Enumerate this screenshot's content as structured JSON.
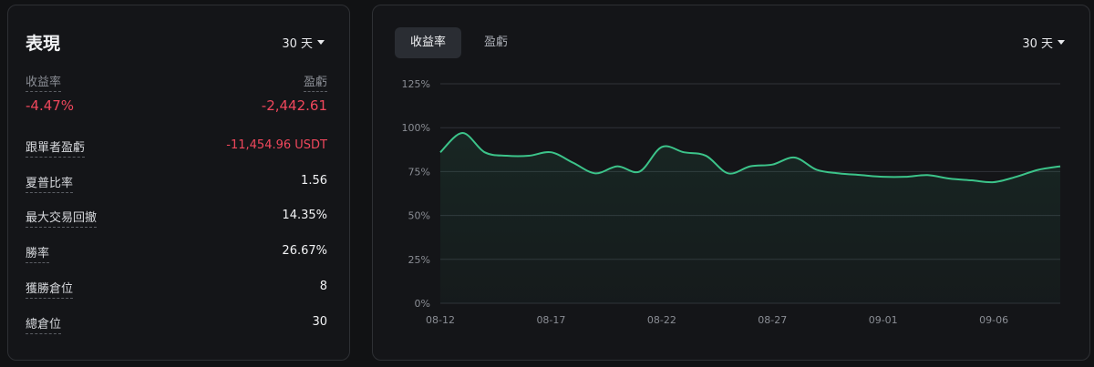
{
  "performance": {
    "title": "表現",
    "period": "30 天",
    "return_label": "收益率",
    "pnl_label": "盈虧",
    "return_value": "-4.47%",
    "pnl_value": "-2,442.61",
    "stats": [
      {
        "label": "跟單者盈虧",
        "value": "-11,454.96 USDT",
        "negative": true
      },
      {
        "label": "夏普比率",
        "value": "1.56",
        "negative": false
      },
      {
        "label": "最大交易回撤",
        "value": "14.35%",
        "negative": false
      },
      {
        "label": "勝率",
        "value": "26.67%",
        "negative": false
      },
      {
        "label": "獲勝倉位",
        "value": "8",
        "negative": false
      },
      {
        "label": "總倉位",
        "value": "30",
        "negative": false
      }
    ]
  },
  "chart_panel": {
    "tabs": [
      "收益率",
      "盈虧"
    ],
    "active_tab": "收益率",
    "period": "30 天"
  },
  "colors": {
    "negative": "#f0475c",
    "line": "#3cc48a",
    "panel_bg": "#141518"
  },
  "chart_data": {
    "type": "area",
    "title": "",
    "xlabel": "",
    "ylabel": "",
    "ylim": [
      0,
      125
    ],
    "yticks": [
      "0%",
      "25%",
      "50%",
      "75%",
      "100%",
      "125%"
    ],
    "xticks": [
      "08-12",
      "08-17",
      "08-22",
      "08-27",
      "09-01",
      "09-06"
    ],
    "grid": true,
    "x": [
      "08-12",
      "08-13",
      "08-14",
      "08-15",
      "08-16",
      "08-17",
      "08-18",
      "08-19",
      "08-20",
      "08-21",
      "08-22",
      "08-23",
      "08-24",
      "08-25",
      "08-26",
      "08-27",
      "08-28",
      "08-29",
      "08-30",
      "08-31",
      "09-01",
      "09-02",
      "09-03",
      "09-04",
      "09-05",
      "09-06",
      "09-07",
      "09-08",
      "09-09"
    ],
    "series": [
      {
        "values": [
          86,
          97,
          86,
          84,
          84,
          86,
          80,
          74,
          78,
          75,
          89,
          86,
          84,
          74,
          78,
          79,
          83,
          76,
          74,
          73,
          72,
          72,
          73,
          71,
          70,
          69,
          72,
          76,
          78
        ]
      }
    ]
  }
}
